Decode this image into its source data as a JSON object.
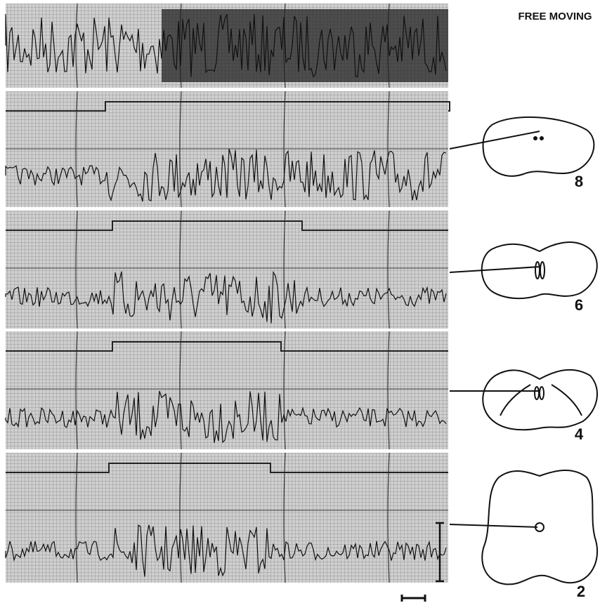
{
  "header": {
    "title": "FREE MOVING"
  },
  "sections": [
    {
      "label": "8"
    },
    {
      "label": "6"
    },
    {
      "label": "4"
    },
    {
      "label": "2"
    }
  ]
}
